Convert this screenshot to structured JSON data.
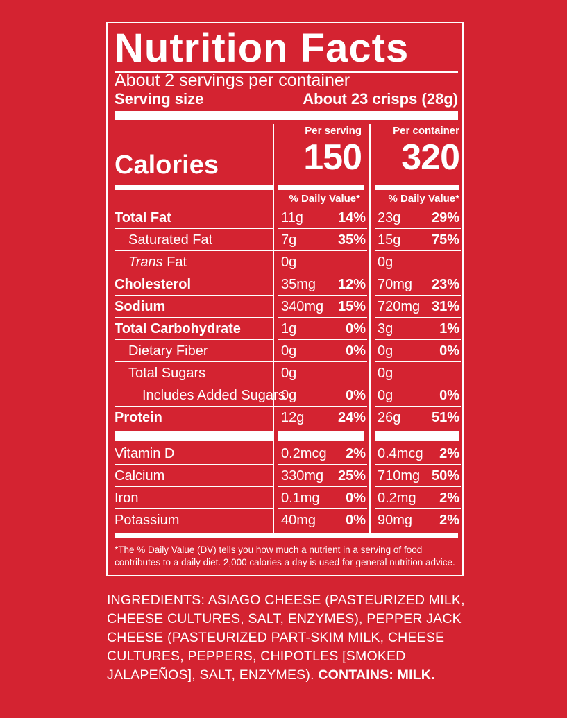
{
  "panel": {
    "title": "Nutrition Facts",
    "servings_per_container": "About 2 servings per container",
    "serving_size_label": "Serving size",
    "serving_size_value": "About 23 crisps (28g)",
    "per_serving_label": "Per serving",
    "per_container_label": "Per container",
    "calories_label": "Calories",
    "calories_per_serving": "150",
    "calories_per_container": "320",
    "dv_header": "% Daily Value*",
    "nutrients": [
      {
        "label": "Total Fat",
        "amt1": "11g",
        "pct1": "14%",
        "amt2": "23g",
        "pct2": "29%"
      },
      {
        "label": "Saturated Fat",
        "amt1": "7g",
        "pct1": "35%",
        "amt2": "15g",
        "pct2": "75%"
      },
      {
        "label_italic": "Trans",
        "label": "Fat",
        "amt1": "0g",
        "pct1": "",
        "amt2": "0g",
        "pct2": ""
      },
      {
        "label": "Cholesterol",
        "amt1": "35mg",
        "pct1": "12%",
        "amt2": "70mg",
        "pct2": "23%"
      },
      {
        "label": "Sodium",
        "amt1": "340mg",
        "pct1": "15%",
        "amt2": "720mg",
        "pct2": "31%"
      },
      {
        "label": "Total Carbohydrate",
        "amt1": "1g",
        "pct1": "0%",
        "amt2": "3g",
        "pct2": "1%"
      },
      {
        "label": "Dietary Fiber",
        "amt1": "0g",
        "pct1": "0%",
        "amt2": "0g",
        "pct2": "0%"
      },
      {
        "label": "Total Sugars",
        "amt1": "0g",
        "pct1": "",
        "amt2": "0g",
        "pct2": ""
      },
      {
        "label": "Includes Added Sugars",
        "amt1": "0g",
        "pct1": "0%",
        "amt2": "0g",
        "pct2": "0%"
      },
      {
        "label": "Protein",
        "amt1": "12g",
        "pct1": "24%",
        "amt2": "26g",
        "pct2": "51%"
      }
    ],
    "vitamins": [
      {
        "label": "Vitamin D",
        "amt1": "0.2mcg",
        "pct1": "2%",
        "amt2": "0.4mcg",
        "pct2": "2%"
      },
      {
        "label": "Calcium",
        "amt1": "330mg",
        "pct1": "25%",
        "amt2": "710mg",
        "pct2": "50%"
      },
      {
        "label": "Iron",
        "amt1": "0.1mg",
        "pct1": "0%",
        "amt2": "0.2mg",
        "pct2": "2%"
      },
      {
        "label": "Potassium",
        "amt1": "40mg",
        "pct1": "0%",
        "amt2": "90mg",
        "pct2": "2%"
      }
    ],
    "footnote": "*The % Daily Value (DV) tells you how much a nutrient in a serving of food contributes to a daily diet. 2,000 calories a day is used for general nutrition advice."
  },
  "ingredients": {
    "text": "INGREDIENTS: ASIAGO CHEESE (PASTEURIZED MILK, CHEESE CULTURES, SALT, ENZYMES), PEPPER JACK CHEESE (PASTEURIZED PART-SKIM MILK, CHEESE CULTURES, PEPPERS, CHIPOTLES [SMOKED JALAPEÑOS], SALT, ENZYMES).",
    "contains": "CONTAINS: MILK."
  },
  "colors": {
    "background": "#d42331",
    "foreground": "#ffffff"
  }
}
